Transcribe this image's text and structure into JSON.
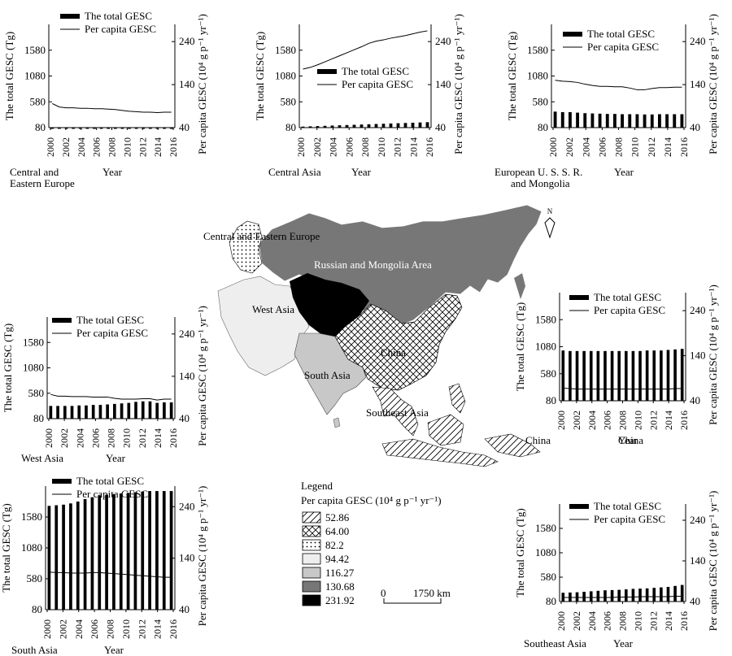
{
  "common": {
    "ylabel_left": "The total GESC (Tg)",
    "ylabel_right": "Per capita GESC (10⁴ g p⁻¹ yr⁻¹)",
    "xlabel": "Year",
    "legend_bar": "The total GESC",
    "legend_line": "Per capita GESC",
    "left_ticks": [
      "80",
      "580",
      "1080",
      "1580"
    ],
    "right_ticks": [
      "40",
      "140",
      "240"
    ],
    "x_ticks": [
      "2000",
      "2002",
      "2004",
      "2006",
      "2008",
      "2010",
      "2012",
      "2014",
      "2016"
    ]
  },
  "map": {
    "north_label": "N",
    "region_labels": {
      "cee": "Central and Eastern Europe",
      "russia": "Russian and Mongolia Area",
      "westasia": "West Asia",
      "china": "China",
      "china2": "China",
      "southasia": "South Asia",
      "seasia": "Southeast Asia"
    },
    "scale_zero": "0",
    "scale_label": "1750 km"
  },
  "legend": {
    "title": "Legend",
    "subtitle": "Per capita GESC (10⁴ g p⁻¹ yr⁻¹)",
    "items": [
      {
        "value": "52.86",
        "pattern": "diag"
      },
      {
        "value": "64.00",
        "pattern": "cross"
      },
      {
        "value": "82.2",
        "pattern": "dots"
      },
      {
        "value": "94.42",
        "fill": "#eeeeee"
      },
      {
        "value": "116.27",
        "fill": "#c8c8c8"
      },
      {
        "value": "130.68",
        "fill": "#777777"
      },
      {
        "value": "231.92",
        "fill": "#000000"
      }
    ]
  },
  "chart_data": [
    {
      "id": "cee",
      "type": "bar+line",
      "region_label": [
        "Central and",
        "Eastern Europe"
      ],
      "years": [
        2000,
        2001,
        2002,
        2003,
        2004,
        2005,
        2006,
        2007,
        2008,
        2009,
        2010,
        2011,
        2012,
        2013,
        2014,
        2015,
        2016,
        2017
      ],
      "total_gesc": [
        80,
        80,
        80,
        80,
        80,
        80,
        80,
        80,
        80,
        80,
        80,
        80,
        80,
        80,
        80,
        80,
        80,
        80
      ],
      "per_capita": [
        96,
        88,
        86,
        86,
        85,
        85,
        84,
        84,
        83,
        82,
        80,
        78,
        77,
        76,
        76,
        75,
        76,
        76
      ],
      "ylim_left": [
        80,
        2080
      ],
      "ylim_right": [
        40,
        280
      ]
    },
    {
      "id": "centralasia",
      "type": "bar+line",
      "region_label": [
        "Central Asia"
      ],
      "years": [
        2000,
        2001,
        2002,
        2003,
        2004,
        2005,
        2006,
        2007,
        2008,
        2009,
        2010,
        2011,
        2012,
        2013,
        2014,
        2015,
        2016,
        2017
      ],
      "total_gesc": [
        100,
        105,
        110,
        115,
        120,
        125,
        130,
        135,
        140,
        145,
        150,
        155,
        160,
        165,
        170,
        175,
        180,
        185
      ],
      "per_capita": [
        176,
        180,
        186,
        193,
        200,
        207,
        214,
        221,
        228,
        236,
        241,
        244,
        248,
        251,
        254,
        258,
        262,
        265
      ],
      "ylim_left": [
        80,
        2080
      ],
      "ylim_right": [
        40,
        280
      ]
    },
    {
      "id": "eur",
      "type": "bar+line",
      "region_label": [
        "European U. S. S. R.",
        "and Mongolia"
      ],
      "years": [
        2000,
        2001,
        2002,
        2003,
        2004,
        2005,
        2006,
        2007,
        2008,
        2009,
        2010,
        2011,
        2012,
        2013,
        2014,
        2015,
        2016,
        2017
      ],
      "total_gesc": [
        390,
        380,
        380,
        370,
        360,
        355,
        350,
        345,
        345,
        340,
        340,
        340,
        335,
        335,
        340,
        340,
        340,
        340
      ],
      "per_capita": [
        150,
        148,
        147,
        145,
        141,
        138,
        136,
        136,
        135,
        135,
        132,
        128,
        128,
        131,
        133,
        133,
        134,
        134
      ],
      "ylim_left": [
        80,
        2080
      ],
      "ylim_right": [
        40,
        280
      ]
    },
    {
      "id": "westasia",
      "type": "bar+line",
      "region_label": [
        "West Asia"
      ],
      "years": [
        2000,
        2001,
        2002,
        2003,
        2004,
        2005,
        2006,
        2007,
        2008,
        2009,
        2010,
        2011,
        2012,
        2013,
        2014,
        2015,
        2016,
        2017
      ],
      "total_gesc": [
        330,
        330,
        330,
        330,
        340,
        340,
        350,
        350,
        360,
        370,
        380,
        390,
        410,
        420,
        420,
        390,
        400,
        400
      ],
      "per_capita": [
        97,
        93,
        93,
        92,
        92,
        92,
        91,
        91,
        91,
        88,
        86,
        86,
        86,
        87,
        87,
        84,
        86,
        86
      ],
      "ylim_left": [
        80,
        2080
      ],
      "ylim_right": [
        40,
        280
      ]
    },
    {
      "id": "southasia",
      "type": "bar+line",
      "region_label": [
        "South Asia"
      ],
      "years": [
        2000,
        2001,
        2002,
        2003,
        2004,
        2005,
        2006,
        2007,
        2008,
        2009,
        2010,
        2011,
        2012,
        2013,
        2014,
        2015,
        2016,
        2017
      ],
      "total_gesc": [
        1760,
        1770,
        1780,
        1800,
        1830,
        1870,
        1900,
        1930,
        1940,
        1950,
        1960,
        1970,
        1980,
        1990,
        2000,
        2000,
        2000,
        2000
      ],
      "per_capita": [
        113,
        112,
        112,
        111,
        111,
        111,
        112,
        112,
        111,
        110,
        109,
        108,
        107,
        106,
        105,
        104,
        103,
        103
      ],
      "ylim_left": [
        80,
        2080
      ],
      "ylim_right": [
        40,
        280
      ]
    },
    {
      "id": "china",
      "type": "bar+line",
      "region_label": [
        "China"
      ],
      "years": [
        2000,
        2001,
        2002,
        2003,
        2004,
        2005,
        2006,
        2007,
        2008,
        2009,
        2010,
        2011,
        2012,
        2013,
        2014,
        2015,
        2016,
        2017
      ],
      "total_gesc": [
        1010,
        1000,
        1000,
        1000,
        1000,
        1000,
        1000,
        1000,
        1000,
        1000,
        1000,
        1000,
        1010,
        1010,
        1010,
        1020,
        1030,
        1040
      ],
      "per_capita": [
        68,
        67,
        66,
        66,
        66,
        66,
        66,
        66,
        66,
        66,
        66,
        66,
        66,
        66,
        66,
        66,
        67,
        67
      ],
      "ylim_left": [
        80,
        2080
      ],
      "ylim_right": [
        40,
        280
      ]
    },
    {
      "id": "seasia",
      "type": "bar+line",
      "region_label": [
        "Southeast Asia"
      ],
      "years": [
        2000,
        2001,
        2002,
        2003,
        2004,
        2005,
        2006,
        2007,
        2008,
        2009,
        2010,
        2011,
        2012,
        2013,
        2014,
        2015,
        2016,
        2017
      ],
      "total_gesc": [
        260,
        265,
        270,
        280,
        290,
        300,
        310,
        315,
        320,
        330,
        340,
        345,
        350,
        360,
        370,
        380,
        400,
        420
      ],
      "per_capita": [
        50,
        50,
        50,
        50,
        50,
        50,
        50,
        50,
        51,
        51,
        51,
        52,
        52,
        52,
        52,
        52,
        53,
        53
      ],
      "ylim_left": [
        80,
        2080
      ],
      "ylim_right": [
        40,
        280
      ]
    }
  ]
}
